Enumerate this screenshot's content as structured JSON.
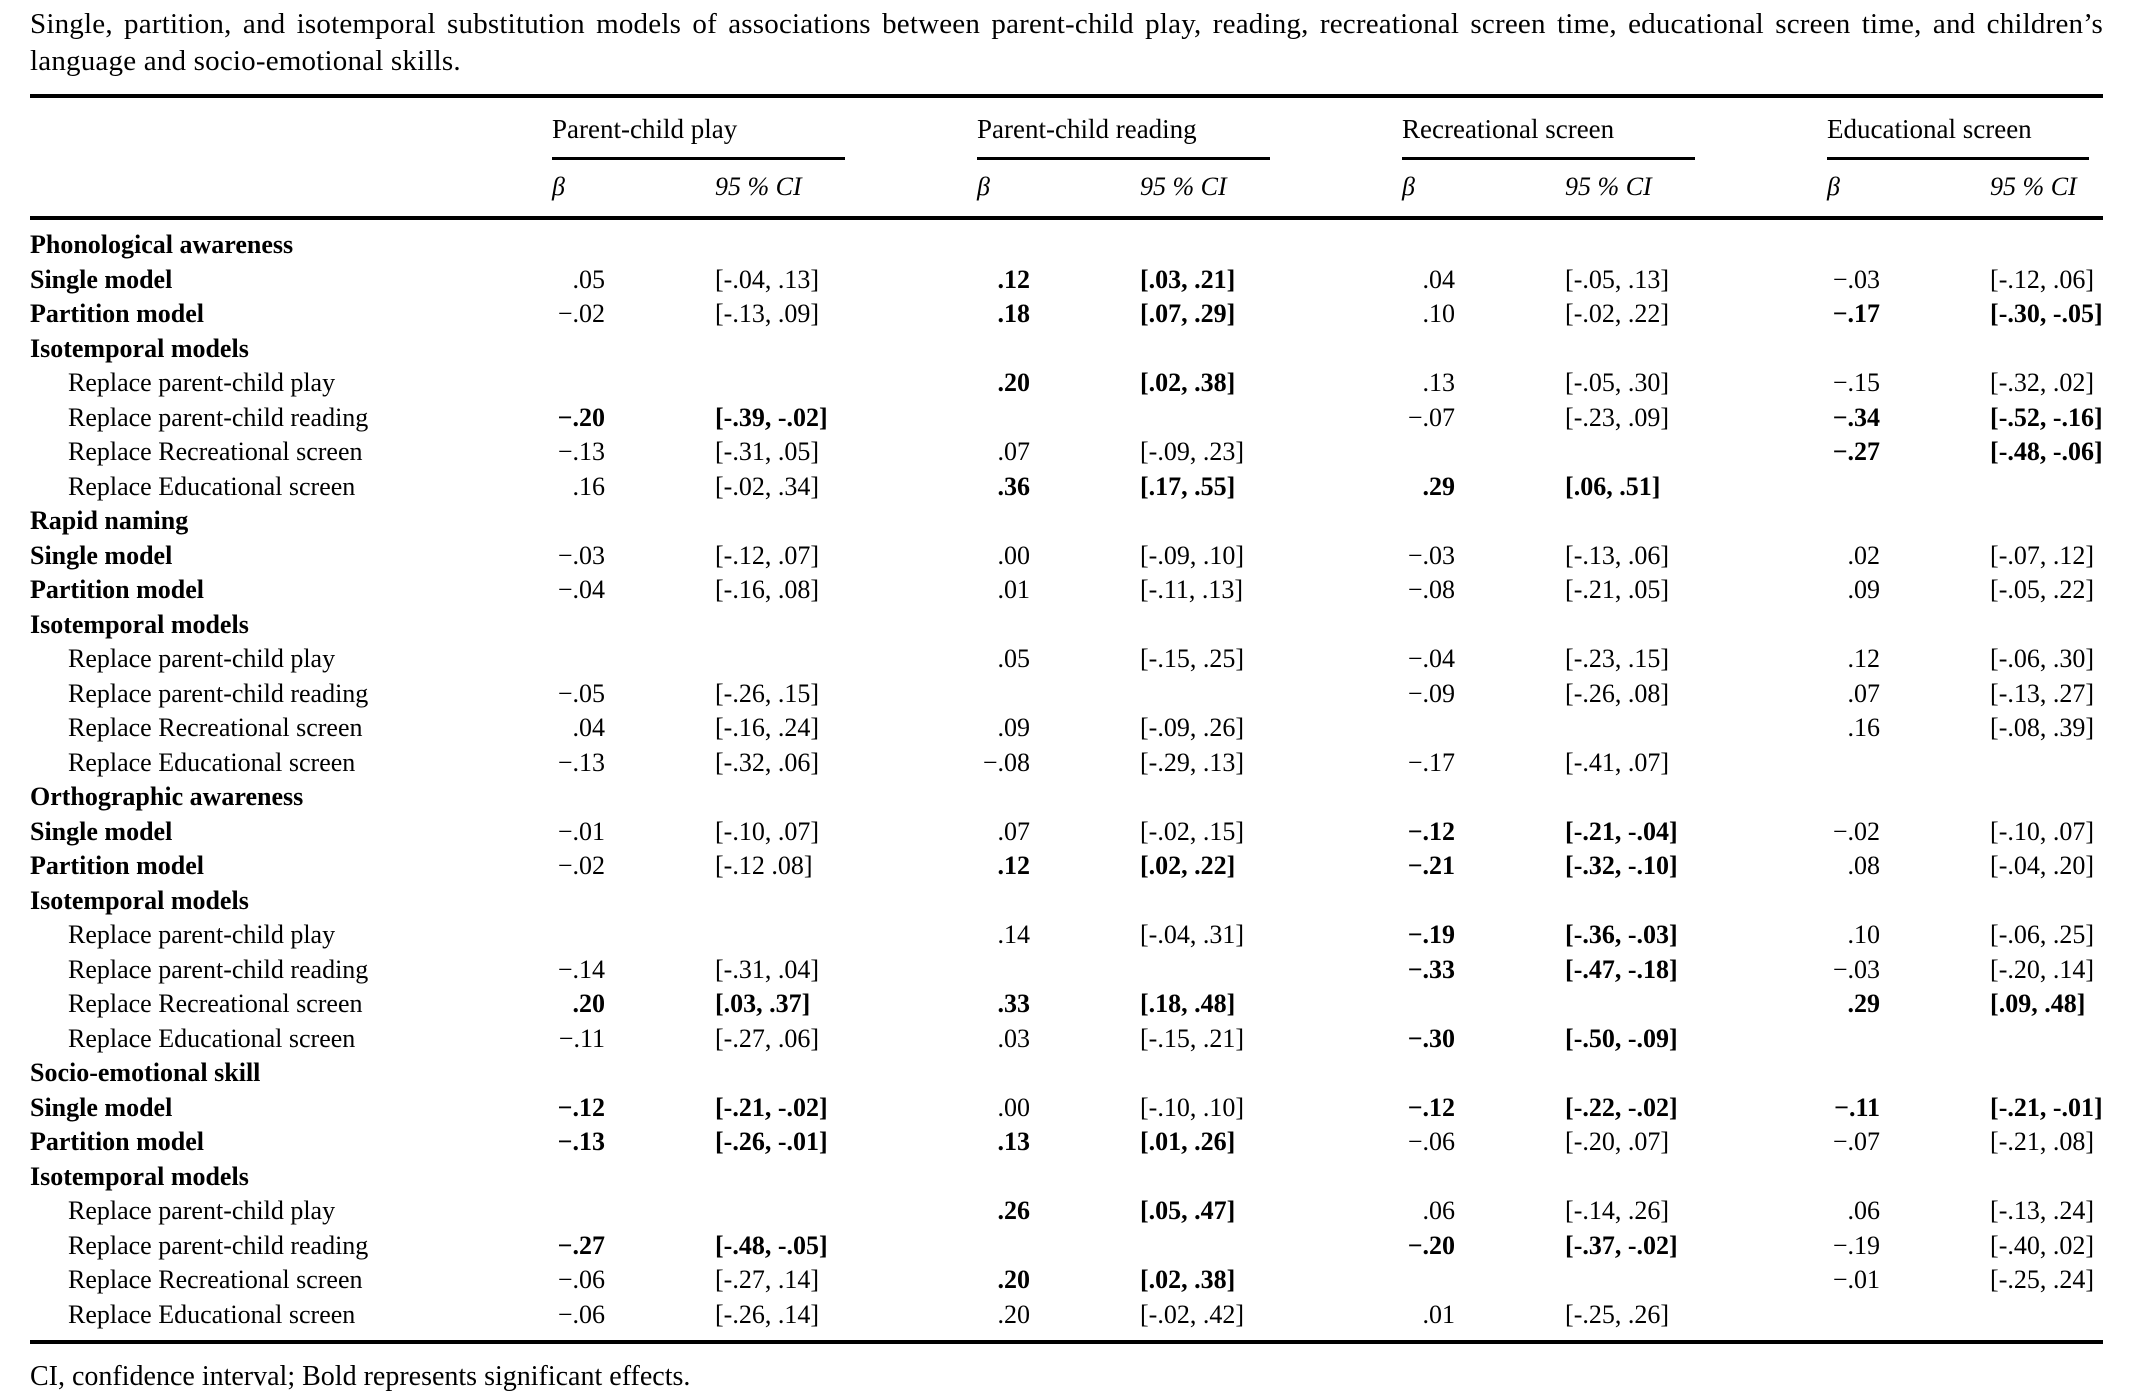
{
  "title": "Single, partition, and isotemporal substitution models of associations between parent-child play, reading, recreational screen time, educational screen time, and children’s language and socio-emotional skills.",
  "table": {
    "column_groups": [
      {
        "label": "Parent-child play"
      },
      {
        "label": "Parent-child reading"
      },
      {
        "label": "Recreational screen"
      },
      {
        "label": "Educational screen"
      }
    ],
    "subheaders": {
      "beta": "β",
      "ci": "95 % CI"
    },
    "rows": [
      {
        "label": "Phonological awareness",
        "type": "head",
        "cells": [
          {},
          {},
          {},
          {}
        ]
      },
      {
        "label": "Single model",
        "type": "head",
        "cells": [
          {
            "b": ".05",
            "ci": "[-.04, .13]"
          },
          {
            "b": ".12",
            "ci": "[.03, .21]",
            "bold": true
          },
          {
            "b": ".04",
            "ci": "[-.05, .13]"
          },
          {
            "b": "−.03",
            "ci": "[-.12, .06]"
          }
        ]
      },
      {
        "label": "Partition model",
        "type": "head",
        "cells": [
          {
            "b": "−.02",
            "ci": "[-.13, .09]"
          },
          {
            "b": ".18",
            "ci": "[.07, .29]",
            "bold": true
          },
          {
            "b": ".10",
            "ci": "[-.02, .22]"
          },
          {
            "b": "−.17",
            "ci": "[-.30, -.05]",
            "bold": true
          }
        ]
      },
      {
        "label": "Isotemporal models",
        "type": "head",
        "cells": [
          {},
          {},
          {},
          {}
        ]
      },
      {
        "label": "Replace parent-child play",
        "type": "replace",
        "cells": [
          {},
          {
            "b": ".20",
            "ci": "[.02, .38]",
            "bold": true
          },
          {
            "b": ".13",
            "ci": "[-.05, .30]"
          },
          {
            "b": "−.15",
            "ci": "[-.32, .02]"
          }
        ]
      },
      {
        "label": "Replace parent-child reading",
        "type": "replace",
        "cells": [
          {
            "b": "−.20",
            "ci": "[-.39, -.02]",
            "bold": true
          },
          {},
          {
            "b": "−.07",
            "ci": "[-.23, .09]"
          },
          {
            "b": "−.34",
            "ci": "[-.52, -.16]",
            "bold": true
          }
        ]
      },
      {
        "label": "Replace Recreational screen",
        "type": "replace",
        "cells": [
          {
            "b": "−.13",
            "ci": "[-.31, .05]"
          },
          {
            "b": ".07",
            "ci": "[-.09, .23]"
          },
          {},
          {
            "b": "−.27",
            "ci": "[-.48, -.06]",
            "bold": true
          }
        ]
      },
      {
        "label": "Replace Educational screen",
        "type": "replace",
        "cells": [
          {
            "b": ".16",
            "ci": "[-.02, .34]"
          },
          {
            "b": ".36",
            "ci": "[.17, .55]",
            "bold": true
          },
          {
            "b": ".29",
            "ci": "[.06, .51]",
            "bold": true
          },
          {}
        ]
      },
      {
        "label": "Rapid naming",
        "type": "head",
        "cells": [
          {},
          {},
          {},
          {}
        ]
      },
      {
        "label": "Single model",
        "type": "head",
        "cells": [
          {
            "b": "−.03",
            "ci": "[-.12, .07]"
          },
          {
            "b": ".00",
            "ci": "[-.09, .10]"
          },
          {
            "b": "−.03",
            "ci": "[-.13, .06]"
          },
          {
            "b": ".02",
            "ci": "[-.07, .12]"
          }
        ]
      },
      {
        "label": "Partition model",
        "type": "head",
        "cells": [
          {
            "b": "−.04",
            "ci": "[-.16, .08]"
          },
          {
            "b": ".01",
            "ci": "[-.11, .13]"
          },
          {
            "b": "−.08",
            "ci": "[-.21, .05]"
          },
          {
            "b": ".09",
            "ci": "[-.05, .22]"
          }
        ]
      },
      {
        "label": "Isotemporal models",
        "type": "head",
        "cells": [
          {},
          {},
          {},
          {}
        ]
      },
      {
        "label": "Replace parent-child play",
        "type": "replace",
        "cells": [
          {},
          {
            "b": ".05",
            "ci": "[-.15, .25]"
          },
          {
            "b": "−.04",
            "ci": "[-.23, .15]"
          },
          {
            "b": ".12",
            "ci": "[-.06, .30]"
          }
        ]
      },
      {
        "label": "Replace parent-child reading",
        "type": "replace",
        "cells": [
          {
            "b": "−.05",
            "ci": "[-.26, .15]"
          },
          {},
          {
            "b": "−.09",
            "ci": "[-.26, .08]"
          },
          {
            "b": ".07",
            "ci": "[-.13, .27]"
          }
        ]
      },
      {
        "label": "Replace Recreational screen",
        "type": "replace",
        "cells": [
          {
            "b": ".04",
            "ci": "[-.16, .24]"
          },
          {
            "b": ".09",
            "ci": "[-.09, .26]"
          },
          {},
          {
            "b": ".16",
            "ci": "[-.08, .39]"
          }
        ]
      },
      {
        "label": "Replace Educational screen",
        "type": "replace",
        "cells": [
          {
            "b": "−.13",
            "ci": "[-.32, .06]"
          },
          {
            "b": "−.08",
            "ci": "[-.29, .13]"
          },
          {
            "b": "−.17",
            "ci": "[-.41, .07]"
          },
          {}
        ]
      },
      {
        "label": "Orthographic awareness",
        "type": "head",
        "cells": [
          {},
          {},
          {},
          {}
        ]
      },
      {
        "label": "Single model",
        "type": "head",
        "cells": [
          {
            "b": "−.01",
            "ci": "[-.10, .07]"
          },
          {
            "b": ".07",
            "ci": "[-.02, .15]"
          },
          {
            "b": "−.12",
            "ci": "[-.21, -.04]",
            "bold": true
          },
          {
            "b": "−.02",
            "ci": "[-.10, .07]"
          }
        ]
      },
      {
        "label": "Partition model",
        "type": "head",
        "cells": [
          {
            "b": "−.02",
            "ci": "[-.12 .08]"
          },
          {
            "b": ".12",
            "ci": "[.02, .22]",
            "bold": true
          },
          {
            "b": "−.21",
            "ci": "[-.32, -.10]",
            "bold": true
          },
          {
            "b": ".08",
            "ci": "[-.04, .20]"
          }
        ]
      },
      {
        "label": "Isotemporal models",
        "type": "head",
        "cells": [
          {},
          {},
          {},
          {}
        ]
      },
      {
        "label": "Replace parent-child play",
        "type": "replace",
        "cells": [
          {},
          {
            "b": ".14",
            "ci": "[-.04, .31]"
          },
          {
            "b": "−.19",
            "ci": "[-.36, -.03]",
            "bold": true
          },
          {
            "b": ".10",
            "ci": "[-.06, .25]"
          }
        ]
      },
      {
        "label": "Replace parent-child reading",
        "type": "replace",
        "cells": [
          {
            "b": "−.14",
            "ci": "[-.31, .04]"
          },
          {},
          {
            "b": "−.33",
            "ci": "[-.47, -.18]",
            "bold": true
          },
          {
            "b": "−.03",
            "ci": "[-.20, .14]"
          }
        ]
      },
      {
        "label": "Replace Recreational screen",
        "type": "replace",
        "cells": [
          {
            "b": ".20",
            "ci": "[.03, .37]",
            "bold": true
          },
          {
            "b": ".33",
            "ci": "[.18, .48]",
            "bold": true
          },
          {},
          {
            "b": ".29",
            "ci": "[.09, .48]",
            "bold": true
          }
        ]
      },
      {
        "label": "Replace Educational screen",
        "type": "replace",
        "cells": [
          {
            "b": "−.11",
            "ci": "[-.27, .06]"
          },
          {
            "b": ".03",
            "ci": "[-.15, .21]"
          },
          {
            "b": "−.30",
            "ci": "[-.50, -.09]",
            "bold": true
          },
          {}
        ]
      },
      {
        "label": "Socio-emotional skill",
        "type": "head",
        "cells": [
          {},
          {},
          {},
          {}
        ]
      },
      {
        "label": "Single model",
        "type": "head",
        "cells": [
          {
            "b": "−.12",
            "ci": "[-.21, -.02]",
            "bold": true
          },
          {
            "b": ".00",
            "ci": "[-.10, .10]"
          },
          {
            "b": "−.12",
            "ci": "[-.22, -.02]",
            "bold": true
          },
          {
            "b": "−.11",
            "ci": "[-.21, -.01]",
            "bold": true
          }
        ]
      },
      {
        "label": "Partition model",
        "type": "head",
        "cells": [
          {
            "b": "−.13",
            "ci": "[-.26, -.01]",
            "bold": true
          },
          {
            "b": ".13",
            "ci": "[.01, .26]",
            "bold": true
          },
          {
            "b": "−.06",
            "ci": "[-.20, .07]"
          },
          {
            "b": "−.07",
            "ci": "[-.21, .08]"
          }
        ]
      },
      {
        "label": "Isotemporal models",
        "type": "head",
        "cells": [
          {},
          {},
          {},
          {}
        ]
      },
      {
        "label": "Replace parent-child play",
        "type": "replace",
        "cells": [
          {},
          {
            "b": ".26",
            "ci": "[.05, .47]",
            "bold": true
          },
          {
            "b": ".06",
            "ci": "[-.14, .26]"
          },
          {
            "b": ".06",
            "ci": "[-.13, .24]"
          }
        ]
      },
      {
        "label": "Replace parent-child reading",
        "type": "replace",
        "cells": [
          {
            "b": "−.27",
            "ci": "[-.48, -.05]",
            "bold": true
          },
          {},
          {
            "b": "−.20",
            "ci": "[-.37, -.02]",
            "bold": true
          },
          {
            "b": "−.19",
            "ci": "[-.40, .02]"
          }
        ]
      },
      {
        "label": "Replace Recreational screen",
        "type": "replace",
        "cells": [
          {
            "b": "−.06",
            "ci": "[-.27, .14]"
          },
          {
            "b": ".20",
            "ci": "[.02, .38]",
            "bold": true
          },
          {},
          {
            "b": "−.01",
            "ci": "[-.25, .24]"
          }
        ]
      },
      {
        "label": "Replace Educational screen",
        "type": "replace",
        "cells": [
          {
            "b": "−.06",
            "ci": "[-.26, .14]"
          },
          {
            "b": ".20",
            "ci": "[-.02, .42]"
          },
          {
            "b": ".01",
            "ci": "[-.25, .26]"
          },
          {}
        ]
      }
    ]
  },
  "footnote": "CI, confidence interval; Bold represents significant effects."
}
